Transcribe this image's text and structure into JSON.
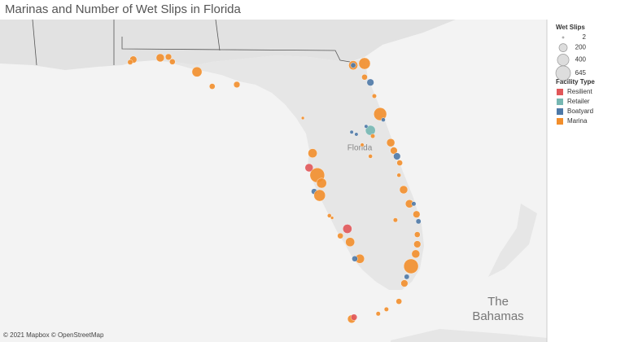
{
  "title": "Marinas and Number of Wet Slips in Florida",
  "map_labels": {
    "state": "Florida",
    "country": [
      "The",
      "Bahamas"
    ]
  },
  "attribution": "© 2021 Mapbox © OpenStreetMap",
  "legend": {
    "size_title": "Wet Slips",
    "sizes": [
      2,
      200,
      400,
      645
    ],
    "color_title": "Facility Type",
    "types": [
      {
        "name": "Resilient",
        "color": "#e15759"
      },
      {
        "name": "Retailer",
        "color": "#76b7b2"
      },
      {
        "name": "Boatyard",
        "color": "#4e79a7"
      },
      {
        "name": "Marina",
        "color": "#f28e2b"
      }
    ]
  },
  "marinas": [
    {
      "lon": -87.4,
      "lat": 30.39,
      "slips": 150,
      "type": "Marina"
    },
    {
      "lon": -87.48,
      "lat": 30.33,
      "slips": 80,
      "type": "Marina"
    },
    {
      "lon": -86.71,
      "lat": 30.43,
      "slips": 200,
      "type": "Marina"
    },
    {
      "lon": -86.5,
      "lat": 30.45,
      "slips": 120,
      "type": "Marina"
    },
    {
      "lon": -86.4,
      "lat": 30.34,
      "slips": 100,
      "type": "Marina"
    },
    {
      "lon": -85.77,
      "lat": 30.11,
      "slips": 300,
      "type": "Marina"
    },
    {
      "lon": -85.38,
      "lat": 29.78,
      "slips": 100,
      "type": "Marina"
    },
    {
      "lon": -84.75,
      "lat": 29.82,
      "slips": 120,
      "type": "Marina"
    },
    {
      "lon": -83.06,
      "lat": 29.06,
      "slips": 30,
      "type": "Marina"
    },
    {
      "lon": -81.77,
      "lat": 30.26,
      "slips": 250,
      "type": "Marina"
    },
    {
      "lon": -81.77,
      "lat": 30.26,
      "slips": 80,
      "type": "Boatyard"
    },
    {
      "lon": -81.48,
      "lat": 30.3,
      "slips": 400,
      "type": "Marina"
    },
    {
      "lon": -81.48,
      "lat": 29.99,
      "slips": 100,
      "type": "Marina"
    },
    {
      "lon": -81.33,
      "lat": 29.87,
      "slips": 150,
      "type": "Boatyard"
    },
    {
      "lon": -81.23,
      "lat": 29.56,
      "slips": 60,
      "type": "Marina"
    },
    {
      "lon": -81.08,
      "lat": 29.15,
      "slips": 500,
      "type": "Marina"
    },
    {
      "lon": -81.0,
      "lat": 29.02,
      "slips": 50,
      "type": "Boatyard"
    },
    {
      "lon": -81.33,
      "lat": 28.78,
      "slips": 300,
      "type": "Retailer"
    },
    {
      "lon": -81.44,
      "lat": 28.87,
      "slips": 40,
      "type": "Boatyard"
    },
    {
      "lon": -81.81,
      "lat": 28.74,
      "slips": 40,
      "type": "Boatyard"
    },
    {
      "lon": -81.69,
      "lat": 28.69,
      "slips": 40,
      "type": "Boatyard"
    },
    {
      "lon": -81.27,
      "lat": 28.65,
      "slips": 60,
      "type": "Marina"
    },
    {
      "lon": -80.81,
      "lat": 28.5,
      "slips": 200,
      "type": "Marina"
    },
    {
      "lon": -80.73,
      "lat": 28.32,
      "slips": 150,
      "type": "Marina"
    },
    {
      "lon": -80.65,
      "lat": 28.19,
      "slips": 150,
      "type": "Boatyard"
    },
    {
      "lon": -80.58,
      "lat": 28.04,
      "slips": 100,
      "type": "Marina"
    },
    {
      "lon": -81.33,
      "lat": 28.19,
      "slips": 50,
      "type": "Marina"
    },
    {
      "lon": -81.54,
      "lat": 28.45,
      "slips": 40,
      "type": "Marina"
    },
    {
      "lon": -80.6,
      "lat": 27.76,
      "slips": 50,
      "type": "Marina"
    },
    {
      "lon": -80.48,
      "lat": 27.43,
      "slips": 200,
      "type": "Marina"
    },
    {
      "lon": -82.81,
      "lat": 28.26,
      "slips": 250,
      "type": "Marina"
    },
    {
      "lon": -82.9,
      "lat": 27.93,
      "slips": 200,
      "type": "Resilient"
    },
    {
      "lon": -82.69,
      "lat": 27.76,
      "slips": 645,
      "type": "Marina"
    },
    {
      "lon": -82.58,
      "lat": 27.58,
      "slips": 300,
      "type": "Marina"
    },
    {
      "lon": -82.77,
      "lat": 27.39,
      "slips": 100,
      "type": "Boatyard"
    },
    {
      "lon": -82.63,
      "lat": 27.3,
      "slips": 400,
      "type": "Marina"
    },
    {
      "lon": -80.33,
      "lat": 27.11,
      "slips": 200,
      "type": "Marina"
    },
    {
      "lon": -80.22,
      "lat": 27.11,
      "slips": 60,
      "type": "Boatyard"
    },
    {
      "lon": -80.15,
      "lat": 26.87,
      "slips": 150,
      "type": "Marina"
    },
    {
      "lon": -80.1,
      "lat": 26.71,
      "slips": 80,
      "type": "Boatyard"
    },
    {
      "lon": -82.38,
      "lat": 26.84,
      "slips": 50,
      "type": "Marina"
    },
    {
      "lon": -82.31,
      "lat": 26.79,
      "slips": 30,
      "type": "Marina"
    },
    {
      "lon": -81.92,
      "lat": 26.54,
      "slips": 250,
      "type": "Resilient"
    },
    {
      "lon": -82.1,
      "lat": 26.38,
      "slips": 100,
      "type": "Marina"
    },
    {
      "lon": -81.85,
      "lat": 26.24,
      "slips": 250,
      "type": "Marina"
    },
    {
      "lon": -80.69,
      "lat": 26.74,
      "slips": 60,
      "type": "Marina"
    },
    {
      "lon": -80.13,
      "lat": 26.41,
      "slips": 100,
      "type": "Marina"
    },
    {
      "lon": -80.13,
      "lat": 26.19,
      "slips": 150,
      "type": "Marina"
    },
    {
      "lon": -80.17,
      "lat": 25.97,
      "slips": 200,
      "type": "Marina"
    },
    {
      "lon": -80.29,
      "lat": 25.69,
      "slips": 645,
      "type": "Marina"
    },
    {
      "lon": -81.6,
      "lat": 25.86,
      "slips": 250,
      "type": "Marina"
    },
    {
      "lon": -81.73,
      "lat": 25.86,
      "slips": 100,
      "type": "Boatyard"
    },
    {
      "lon": -80.4,
      "lat": 25.45,
      "slips": 80,
      "type": "Boatyard"
    },
    {
      "lon": -80.46,
      "lat": 25.3,
      "slips": 150,
      "type": "Marina"
    },
    {
      "lon": -80.6,
      "lat": 24.89,
      "slips": 100,
      "type": "Marina"
    },
    {
      "lon": -80.92,
      "lat": 24.71,
      "slips": 60,
      "type": "Marina"
    },
    {
      "lon": -81.13,
      "lat": 24.61,
      "slips": 60,
      "type": "Marina"
    },
    {
      "lon": -81.81,
      "lat": 24.49,
      "slips": 200,
      "type": "Marina"
    },
    {
      "lon": -81.75,
      "lat": 24.53,
      "slips": 120,
      "type": "Resilient"
    }
  ]
}
